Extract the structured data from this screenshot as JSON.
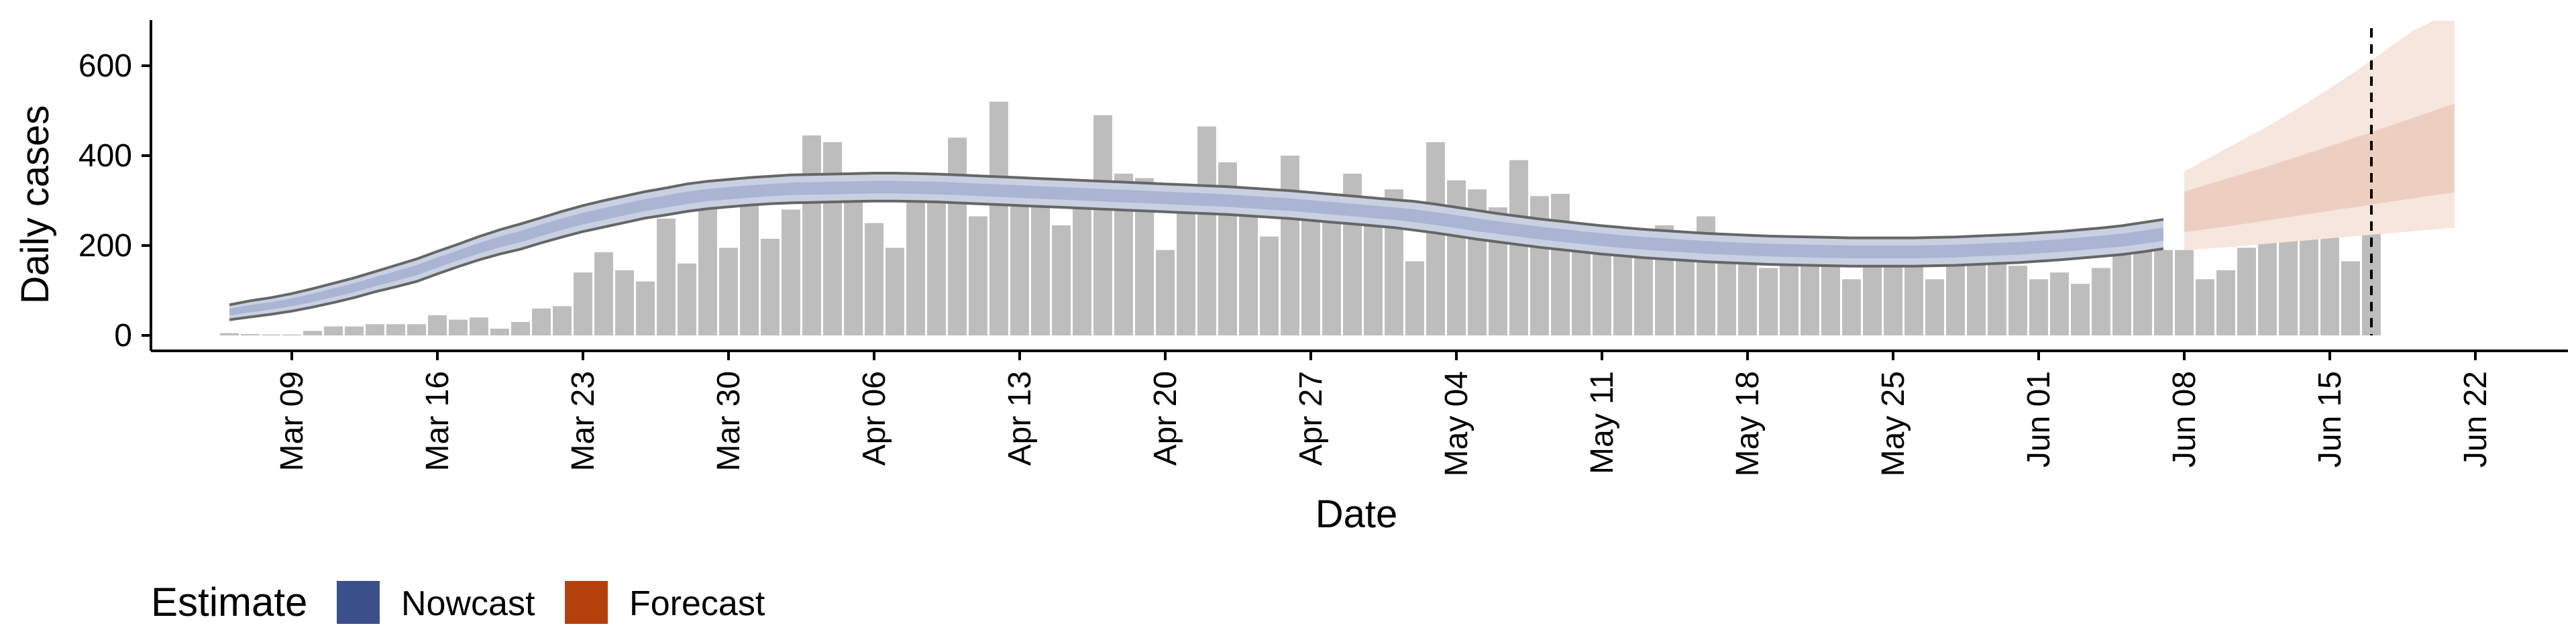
{
  "chart_data": {
    "type": "bar",
    "title": "",
    "xlabel": "Date",
    "ylabel": "Daily cases",
    "ylim": [
      0,
      700
    ],
    "yticks": [
      0,
      200,
      400,
      600
    ],
    "x_start": "2020-03-06",
    "x_ticks": [
      "Mar 09",
      "Mar 16",
      "Mar 23",
      "Mar 30",
      "Apr 06",
      "Apr 13",
      "Apr 20",
      "Apr 27",
      "May 04",
      "May 11",
      "May 18",
      "May 25",
      "Jun 01",
      "Jun 08",
      "Jun 15",
      "Jun 22"
    ],
    "grid": false,
    "cases": [
      5,
      3,
      2,
      2,
      10,
      20,
      20,
      25,
      25,
      25,
      45,
      35,
      40,
      15,
      30,
      60,
      65,
      140,
      185,
      145,
      120,
      260,
      160,
      305,
      195,
      300,
      215,
      280,
      445,
      430,
      330,
      250,
      195,
      360,
      340,
      440,
      265,
      520,
      310,
      330,
      245,
      300,
      490,
      360,
      350,
      190,
      305,
      465,
      385,
      300,
      220,
      400,
      280,
      290,
      360,
      275,
      325,
      165,
      430,
      345,
      325,
      285,
      390,
      310,
      315,
      230,
      225,
      200,
      225,
      245,
      195,
      265,
      170,
      170,
      150,
      190,
      195,
      185,
      125,
      180,
      215,
      215,
      125,
      165,
      190,
      195,
      155,
      125,
      140,
      115,
      150,
      235,
      195,
      190,
      190,
      125,
      145,
      195,
      235,
      225,
      275,
      320,
      165,
      250
    ],
    "forecast_start": "2020-06-08",
    "estimate_date": "2020-06-17",
    "nowcast": {
      "median": [
        52,
        60,
        66,
        74,
        84,
        95,
        106,
        120,
        132,
        145,
        162,
        178,
        194,
        208,
        220,
        234,
        248,
        260,
        270,
        280,
        290,
        298,
        306,
        312,
        316,
        320,
        323,
        326,
        327,
        328,
        329,
        330,
        330,
        329,
        328,
        326,
        324,
        322,
        320,
        318,
        316,
        314,
        312,
        310,
        308,
        306,
        304,
        302,
        300,
        297,
        294,
        291,
        287,
        283,
        279,
        275,
        271,
        266,
        260,
        253,
        246,
        240,
        234,
        228,
        223,
        218,
        213,
        209,
        205,
        202,
        199,
        196,
        194,
        192,
        190,
        189,
        188,
        187,
        186,
        186,
        186,
        186,
        187,
        188,
        190,
        192,
        194,
        197,
        200,
        204,
        208,
        212,
        218,
        225
      ],
      "lower": [
        35,
        41,
        47,
        54,
        63,
        73,
        84,
        97,
        108,
        120,
        137,
        153,
        168,
        181,
        192,
        206,
        219,
        231,
        241,
        251,
        261,
        268,
        276,
        282,
        286,
        290,
        293,
        295,
        296,
        297,
        298,
        299,
        299,
        298,
        297,
        295,
        293,
        291,
        289,
        287,
        285,
        283,
        281,
        279,
        277,
        275,
        273,
        271,
        269,
        266,
        263,
        260,
        256,
        252,
        248,
        244,
        240,
        234,
        228,
        221,
        214,
        208,
        202,
        196,
        191,
        186,
        181,
        177,
        173,
        170,
        167,
        164,
        162,
        160,
        158,
        157,
        156,
        155,
        154,
        154,
        154,
        154,
        155,
        156,
        158,
        160,
        162,
        165,
        168,
        172,
        176,
        180,
        186,
        193
      ],
      "upper": [
        68,
        77,
        84,
        93,
        104,
        116,
        128,
        142,
        156,
        170,
        187,
        203,
        220,
        235,
        248,
        262,
        276,
        289,
        300,
        310,
        320,
        328,
        337,
        343,
        347,
        351,
        354,
        357,
        358,
        359,
        360,
        361,
        361,
        360,
        359,
        357,
        355,
        353,
        351,
        349,
        347,
        345,
        343,
        341,
        339,
        337,
        335,
        333,
        331,
        328,
        325,
        322,
        318,
        314,
        310,
        306,
        302,
        298,
        292,
        285,
        278,
        271,
        265,
        259,
        254,
        249,
        244,
        240,
        236,
        233,
        230,
        227,
        225,
        223,
        221,
        220,
        219,
        218,
        217,
        217,
        217,
        217,
        218,
        219,
        221,
        223,
        225,
        228,
        231,
        235,
        239,
        244,
        251,
        258
      ]
    },
    "forecast": {
      "median": [
        275,
        285,
        295,
        305,
        316,
        327,
        338,
        349,
        361,
        372,
        384,
        396,
        408,
        420
      ],
      "lower50": [
        230,
        236,
        242,
        249,
        256,
        263,
        270,
        277,
        284,
        291,
        298,
        305,
        312,
        318
      ],
      "upper50": [
        320,
        334,
        348,
        362,
        376,
        391,
        406,
        421,
        437,
        452,
        468,
        484,
        500,
        516
      ],
      "lower90": [
        190,
        193,
        196,
        200,
        204,
        208,
        212,
        216,
        220,
        224,
        228,
        232,
        236,
        240
      ],
      "upper90": [
        365,
        390,
        415,
        440,
        465,
        492,
        520,
        550,
        580,
        612,
        645,
        678,
        700,
        700
      ]
    },
    "legend": {
      "title": "Estimate",
      "placement": "bottom-left",
      "entries": [
        {
          "label": "Nowcast",
          "color": "#3b4f8a"
        },
        {
          "label": "Forecast",
          "color": "#b5400e"
        }
      ]
    },
    "colors": {
      "bars": "#bdbdbd",
      "nowcast_band": "#c9d0e2",
      "nowcast_inner": "#a9b5d3",
      "ci_lines": "#666666",
      "forecast_outer": "#f6e6de",
      "forecast_inner": "#edcfc1"
    }
  }
}
